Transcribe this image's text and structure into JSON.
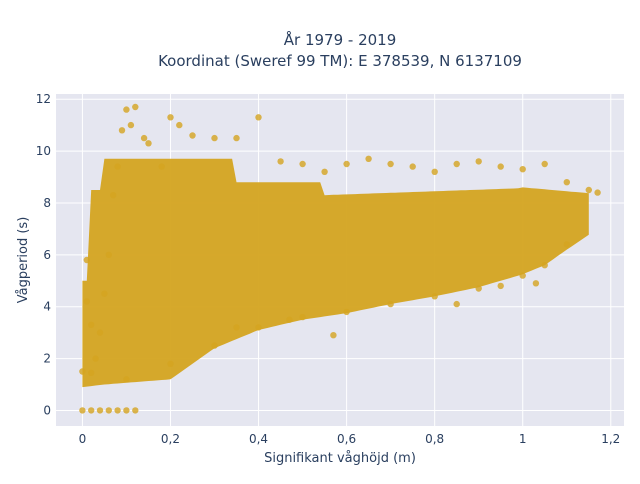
{
  "chart_data": {
    "type": "scatter",
    "title_line1": "År 1979 - 2019",
    "title_line2": "Koordinat (Sweref 99 TM): E 378539, N 6137109",
    "xlabel": "Signifikant våghöjd (m)",
    "ylabel": "Vågperiod (s)",
    "xlim": [
      -0.06,
      1.23
    ],
    "ylim": [
      -0.6,
      12.2
    ],
    "x_ticks": [
      0,
      0.2,
      0.4,
      0.6,
      0.8,
      1.0,
      1.2
    ],
    "x_tick_labels": [
      "0",
      "0,2",
      "0,4",
      "0,6",
      "0,8",
      "1",
      "1,2"
    ],
    "y_ticks": [
      0,
      2,
      4,
      6,
      8,
      10,
      12
    ],
    "y_tick_labels": [
      "0",
      "2",
      "4",
      "6",
      "8",
      "10",
      "12"
    ],
    "grid": true,
    "marker_color": "#d4a420",
    "background_color": "#e5e6f0",
    "series": [
      {
        "values_xy": [
          [
            0.02,
            1.45
          ],
          [
            0.03,
            2.0
          ],
          [
            0.04,
            3.0
          ],
          [
            0.05,
            4.5
          ],
          [
            0.06,
            6.0
          ],
          [
            0.07,
            8.3
          ],
          [
            0.08,
            9.4
          ],
          [
            0.09,
            10.8
          ],
          [
            0.1,
            11.6
          ],
          [
            0.11,
            11.0
          ],
          [
            0.12,
            11.7
          ],
          [
            0.14,
            10.5
          ],
          [
            0.15,
            10.3
          ],
          [
            0.18,
            9.4
          ],
          [
            0.2,
            11.3
          ],
          [
            0.22,
            11.0
          ],
          [
            0.25,
            10.6
          ],
          [
            0.3,
            10.5
          ],
          [
            0.35,
            10.5
          ],
          [
            0.4,
            11.3
          ],
          [
            0.45,
            9.6
          ],
          [
            0.5,
            9.5
          ],
          [
            0.55,
            9.2
          ],
          [
            0.6,
            9.5
          ],
          [
            0.65,
            9.7
          ],
          [
            0.7,
            9.5
          ],
          [
            0.75,
            9.4
          ],
          [
            0.8,
            9.2
          ],
          [
            0.85,
            9.5
          ],
          [
            0.9,
            9.6
          ],
          [
            0.95,
            9.4
          ],
          [
            1.0,
            9.3
          ],
          [
            1.05,
            9.5
          ],
          [
            1.1,
            8.8
          ],
          [
            1.15,
            8.5
          ],
          [
            1.17,
            8.4
          ],
          [
            0.0,
            1.5
          ],
          [
            0.01,
            5.8
          ],
          [
            0.01,
            4.2
          ],
          [
            0.02,
            3.3
          ],
          [
            0.1,
            1.2
          ],
          [
            0.2,
            1.8
          ],
          [
            0.3,
            2.5
          ],
          [
            0.4,
            3.2
          ],
          [
            0.5,
            3.6
          ],
          [
            0.6,
            3.8
          ],
          [
            0.7,
            4.1
          ],
          [
            0.8,
            4.4
          ],
          [
            0.9,
            4.7
          ],
          [
            1.0,
            5.2
          ],
          [
            1.05,
            5.6
          ],
          [
            1.1,
            6.4
          ],
          [
            0.0,
            0.0
          ],
          [
            0.02,
            0.0
          ],
          [
            0.04,
            0.0
          ],
          [
            0.06,
            0.0
          ],
          [
            0.08,
            0.0
          ],
          [
            0.1,
            0.0
          ],
          [
            0.12,
            0.0
          ],
          [
            0.35,
            3.2
          ],
          [
            0.47,
            3.5
          ],
          [
            0.57,
            2.9
          ],
          [
            0.85,
            4.1
          ],
          [
            1.03,
            4.9
          ],
          [
            0.95,
            4.8
          ]
        ]
      }
    ]
  }
}
